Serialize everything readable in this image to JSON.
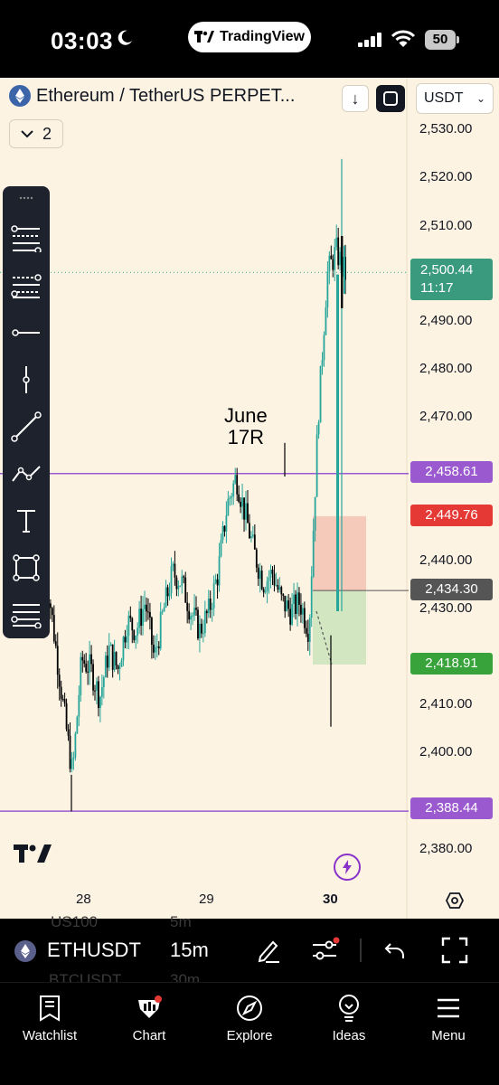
{
  "status_bar": {
    "time": "03:03",
    "app_pill": "TradingView",
    "battery": "50"
  },
  "header": {
    "symbol_title": "Ethereum / TetherUS PERPET...",
    "currency": "USDT",
    "collapse_count": "2"
  },
  "chart": {
    "price_axis": [
      "2,530.00",
      "2,520.00",
      "2,510.00",
      "2,490.00",
      "2,480.00",
      "2,470.00",
      "2,440.00",
      "2,430.00",
      "2,410.00",
      "2,400.00",
      "2,380.00"
    ],
    "dates": [
      "28",
      "29",
      "30"
    ],
    "current_price": "2,500.44",
    "countdown": "11:17",
    "tags": {
      "upper_line": "2,458.61",
      "stop": "2,449.76",
      "entry": "2,434.30",
      "target": "2,418.91",
      "lower_line": "2,388.44"
    },
    "annotation_line1": "June",
    "annotation_line2": "17R",
    "colors": {
      "background": "#fdf3e3",
      "candle_up": "#26a69a",
      "candle_down": "#000000",
      "line_purple": "#9b59d0",
      "stop_zone": "#f4c2b4",
      "target_zone": "#cde6bc"
    }
  },
  "symbol_bar": {
    "ticker": "ETHUSDT",
    "interval": "15m",
    "ghost_row_1": "US100",
    "ghost_row_1_tf": "5m",
    "ghost_row_2": "BTCUSDT",
    "ghost_row_2_tf": "30m"
  },
  "nav": {
    "items": [
      {
        "label": "Watchlist",
        "icon": "watchlist-icon"
      },
      {
        "label": "Chart",
        "icon": "chart-icon"
      },
      {
        "label": "Explore",
        "icon": "compass-icon"
      },
      {
        "label": "Ideas",
        "icon": "lightbulb-icon"
      },
      {
        "label": "Menu",
        "icon": "hamburger-icon"
      }
    ]
  },
  "chart_data": {
    "type": "candlestick",
    "ylim": [
      2376,
      2535
    ],
    "x": [
      "28",
      "29",
      "30"
    ],
    "segments_close": [
      2440,
      2425,
      2410,
      2396,
      2420,
      2418,
      2412,
      2422,
      2418,
      2428,
      2426,
      2432,
      2420,
      2430,
      2438,
      2436,
      2430,
      2426,
      2430,
      2438,
      2452,
      2458,
      2450,
      2442,
      2436,
      2438,
      2432,
      2430,
      2432,
      2426,
      2470,
      2500,
      2505,
      2500
    ],
    "horizontal_lines": [
      2458.61,
      2388.44
    ],
    "position": {
      "entry": 2434.3,
      "stop": 2449.76,
      "target": 2418.91
    }
  }
}
